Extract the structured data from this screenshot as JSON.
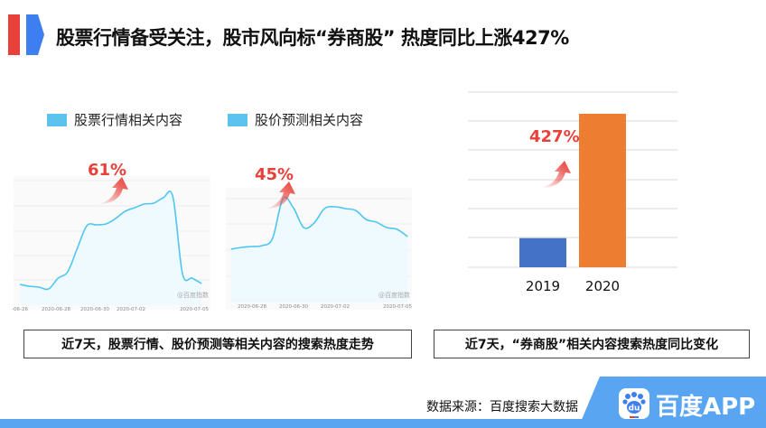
{
  "header": {
    "title": "股票行情备受关注，股市风向标“券商股” 热度同比上涨427%"
  },
  "colors": {
    "header_red": "#e8413a",
    "header_blue": "#3d7ff0",
    "line": "#4fc6ef",
    "area": "#eefaff",
    "bar_2019": "#4472c4",
    "bar_2020": "#ed7d31",
    "highlight": "#e8413a",
    "brand_blue": "#5aa5f2"
  },
  "chart_data": [
    {
      "type": "area",
      "legend": "股票行情相关内容",
      "annotation": "61%",
      "watermark": "@百度指数",
      "x_tick_labels": [
        "-06-26",
        "2020-06-28",
        "2020-06-30",
        "2020-07-02",
        "2020-07-05"
      ],
      "x": [
        "2020-06-26 00:00",
        "2020-06-26 12:00",
        "2020-06-27 00:00",
        "2020-06-27 12:00",
        "2020-06-28 00:00",
        "2020-06-28 12:00",
        "2020-06-29 00:00",
        "2020-06-29 12:00",
        "2020-06-30 00:00",
        "2020-06-30 12:00",
        "2020-07-01 00:00",
        "2020-07-01 12:00",
        "2020-07-02 00:00",
        "2020-07-02 12:00",
        "2020-07-03 00:00",
        "2020-07-03 12:00",
        "2020-07-04 00:00",
        "2020-07-04 12:00",
        "2020-07-05 00:00",
        "2020-07-05 12:00"
      ],
      "values": [
        23,
        21,
        20,
        18,
        30,
        37,
        63,
        88,
        89,
        90,
        96,
        104,
        108,
        112,
        113,
        119,
        120,
        35,
        30,
        24
      ],
      "grid": true
    },
    {
      "type": "area",
      "legend": "股价预测相关内容",
      "annotation": "45%",
      "watermark": "@百度指数",
      "x_tick_labels": [
        "2020-06-28",
        "2020-06-30",
        "2020-07-02",
        "2020-07-05"
      ],
      "x": [
        "2020-06-27 00:00",
        "2020-06-27 12:00",
        "2020-06-28 00:00",
        "2020-06-28 12:00",
        "2020-06-29 00:00",
        "2020-06-29 12:00",
        "2020-06-30 00:00",
        "2020-06-30 12:00",
        "2020-07-01 00:00",
        "2020-07-01 12:00",
        "2020-07-02 00:00",
        "2020-07-02 12:00",
        "2020-07-03 00:00",
        "2020-07-03 12:00",
        "2020-07-04 00:00",
        "2020-07-04 12:00",
        "2020-07-05 00:00",
        "2020-07-05 12:00"
      ],
      "values": [
        59,
        61,
        62,
        63,
        71,
        115,
        105,
        83,
        88,
        104,
        106,
        104,
        102,
        92,
        89,
        83,
        81,
        73
      ],
      "grid": true
    },
    {
      "type": "bar",
      "categories": [
        "2019",
        "2020"
      ],
      "values": [
        1,
        5.27
      ],
      "annotation": "427%",
      "grid": true
    }
  ],
  "captions": {
    "left": "近7天，股票行情、股价预测等相关内容的搜索热度走势",
    "right": "近7天，“券商股”相关内容搜索热度同比变化"
  },
  "footer": {
    "source": "数据来源：百度搜索大数据",
    "brand": "百度APP",
    "logo_text": "du"
  }
}
